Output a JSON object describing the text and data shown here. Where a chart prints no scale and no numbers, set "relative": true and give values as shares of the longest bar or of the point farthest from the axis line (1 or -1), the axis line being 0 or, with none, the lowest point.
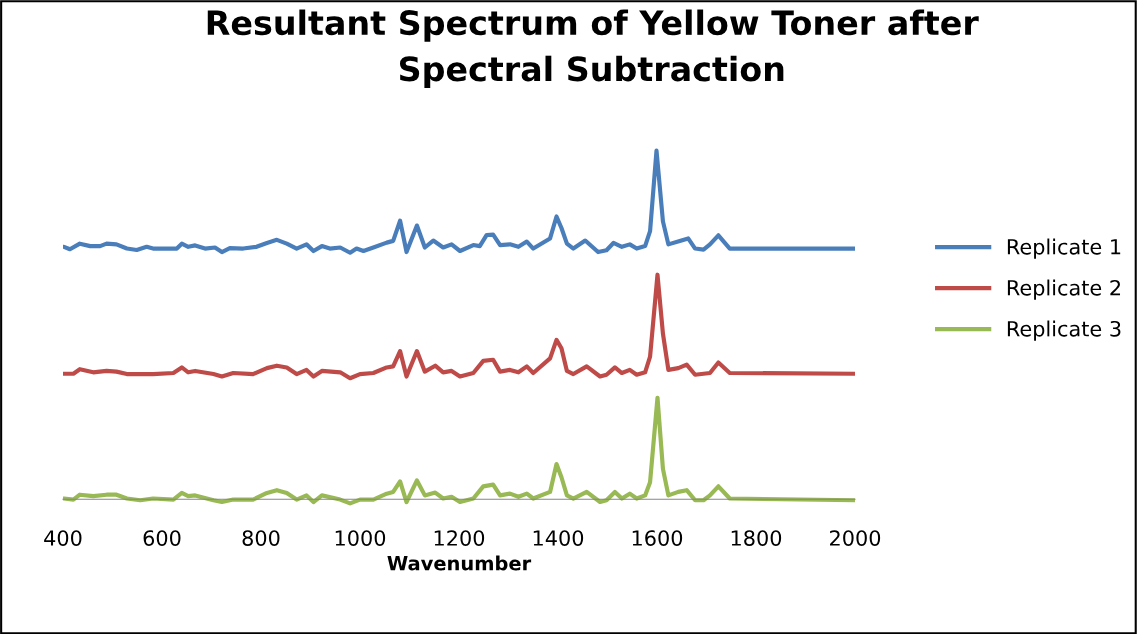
{
  "chart_data": {
    "type": "line",
    "title": "Resultant Spectrum of Yellow Toner after\nSpectral Subtraction",
    "xlabel": "Wavenumber",
    "relative": true,
    "xlim": [
      400,
      2000
    ],
    "xticks": [
      400,
      600,
      800,
      1000,
      1200,
      1400,
      1600,
      1800,
      2000
    ],
    "legend": "right",
    "grid": false,
    "marker": "none",
    "line_style": "solid",
    "series": [
      {
        "name": "Replicate 1",
        "color": "#4a7ebb",
        "x": [
          402,
          414,
          434,
          455,
          475,
          488,
          508,
          529,
          549,
          569,
          582,
          630,
          640,
          653,
          667,
          687,
          707,
          721,
          737,
          764,
          791,
          812,
          832,
          852,
          872,
          892,
          906,
          923,
          939,
          960,
          980,
          993,
          1007,
          1027,
          1054,
          1067,
          1081,
          1094,
          1115,
          1131,
          1148,
          1168,
          1185,
          1202,
          1229,
          1242,
          1256,
          1269,
          1283,
          1303,
          1320,
          1337,
          1350,
          1384,
          1397,
          1407,
          1418,
          1431,
          1455,
          1481,
          1498,
          1512,
          1529,
          1545,
          1559,
          1576,
          1586,
          1599,
          1612,
          1623,
          1646,
          1663,
          1677,
          1694,
          1707,
          1724,
          1747,
          2000
        ],
        "values": [
          0.724,
          0.717,
          0.733,
          0.726,
          0.726,
          0.733,
          0.731,
          0.719,
          0.715,
          0.724,
          0.719,
          0.719,
          0.733,
          0.724,
          0.728,
          0.719,
          0.722,
          0.709,
          0.72,
          0.719,
          0.724,
          0.735,
          0.744,
          0.733,
          0.719,
          0.731,
          0.712,
          0.726,
          0.719,
          0.722,
          0.707,
          0.719,
          0.712,
          0.722,
          0.736,
          0.741,
          0.799,
          0.709,
          0.785,
          0.722,
          0.742,
          0.722,
          0.731,
          0.712,
          0.729,
          0.726,
          0.758,
          0.759,
          0.729,
          0.731,
          0.724,
          0.739,
          0.719,
          0.748,
          0.811,
          0.778,
          0.733,
          0.719,
          0.742,
          0.709,
          0.714,
          0.735,
          0.724,
          0.731,
          0.719,
          0.726,
          0.769,
          1.0,
          0.797,
          0.731,
          0.741,
          0.748,
          0.719,
          0.716,
          0.731,
          0.757,
          0.719,
          0.719
        ]
      },
      {
        "name": "Replicate 2",
        "color": "#be4b48",
        "x": [
          402,
          421,
          434,
          461,
          488,
          508,
          529,
          556,
          582,
          623,
          640,
          653,
          667,
          704,
          721,
          744,
          784,
          812,
          832,
          852,
          872,
          892,
          906,
          923,
          960,
          980,
          1000,
          1027,
          1054,
          1067,
          1081,
          1094,
          1115,
          1131,
          1152,
          1168,
          1185,
          1202,
          1229,
          1249,
          1269,
          1283,
          1303,
          1320,
          1337,
          1350,
          1384,
          1397,
          1407,
          1418,
          1431,
          1458,
          1485,
          1498,
          1515,
          1529,
          1545,
          1559,
          1576,
          1586,
          1601,
          1612,
          1623,
          1643,
          1660,
          1677,
          1694,
          1707,
          1724,
          1747,
          2000
        ],
        "values": [
          0.36,
          0.36,
          0.373,
          0.364,
          0.368,
          0.366,
          0.359,
          0.359,
          0.359,
          0.362,
          0.378,
          0.364,
          0.368,
          0.359,
          0.352,
          0.362,
          0.359,
          0.376,
          0.383,
          0.378,
          0.359,
          0.371,
          0.352,
          0.368,
          0.364,
          0.347,
          0.359,
          0.362,
          0.378,
          0.381,
          0.425,
          0.352,
          0.425,
          0.366,
          0.383,
          0.364,
          0.368,
          0.352,
          0.362,
          0.397,
          0.4,
          0.366,
          0.371,
          0.364,
          0.381,
          0.362,
          0.404,
          0.457,
          0.433,
          0.368,
          0.359,
          0.381,
          0.352,
          0.357,
          0.378,
          0.362,
          0.371,
          0.357,
          0.364,
          0.409,
          0.644,
          0.475,
          0.371,
          0.376,
          0.386,
          0.357,
          0.36,
          0.362,
          0.392,
          0.362,
          0.36
        ]
      },
      {
        "name": "Replicate 3",
        "color": "#98b954",
        "x": [
          402,
          421,
          434,
          461,
          488,
          508,
          529,
          556,
          582,
          623,
          640,
          653,
          667,
          704,
          721,
          744,
          784,
          812,
          832,
          852,
          872,
          892,
          906,
          923,
          960,
          980,
          1000,
          1027,
          1054,
          1067,
          1081,
          1094,
          1115,
          1131,
          1152,
          1168,
          1185,
          1202,
          1229,
          1249,
          1269,
          1283,
          1303,
          1320,
          1337,
          1350,
          1384,
          1397,
          1407,
          1418,
          1431,
          1458,
          1485,
          1498,
          1515,
          1529,
          1545,
          1559,
          1576,
          1586,
          1601,
          1612,
          1623,
          1643,
          1660,
          1677,
          1694,
          1707,
          1724,
          1747,
          2000
        ],
        "values": [
          0.002,
          -0.001,
          0.013,
          0.009,
          0.013,
          0.013,
          0.002,
          -0.003,
          0.002,
          -0.001,
          0.018,
          0.009,
          0.011,
          -0.003,
          -0.008,
          -0.001,
          -0.001,
          0.018,
          0.026,
          0.018,
          -0.001,
          0.011,
          -0.008,
          0.011,
          -0.001,
          -0.012,
          -0.001,
          -0.001,
          0.016,
          0.021,
          0.051,
          -0.008,
          0.054,
          0.011,
          0.019,
          0.002,
          0.007,
          -0.008,
          0.002,
          0.037,
          0.042,
          0.011,
          0.016,
          0.007,
          0.016,
          0.002,
          0.021,
          0.101,
          0.063,
          0.011,
          0.002,
          0.021,
          -0.008,
          -0.003,
          0.021,
          0.002,
          0.016,
          0.002,
          0.011,
          0.049,
          0.291,
          0.087,
          0.011,
          0.021,
          0.026,
          -0.003,
          -0.003,
          0.011,
          0.037,
          0.002,
          -0.003
        ]
      }
    ]
  }
}
